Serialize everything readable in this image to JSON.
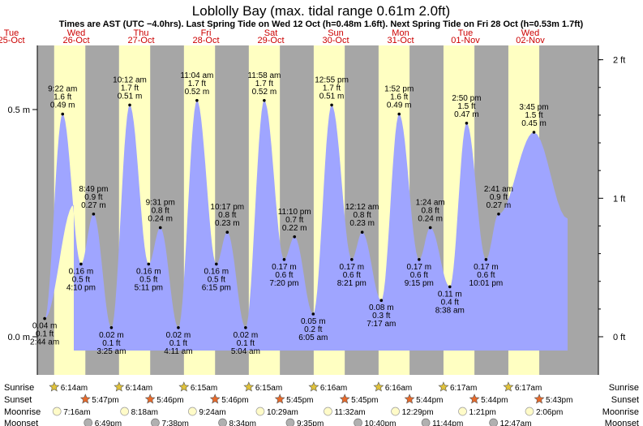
{
  "chart_data": {
    "type": "area",
    "title": "Loblolly Bay (max. tidal range 0.61m 2.0ft)",
    "subtitle": "Times are AST (UTC −4.0hrs). Last Spring Tide on Wed 12 Oct (h=0.48m 1.6ft). Next Spring Tide on Fri 28 Oct (h=0.53m 1.7ft)",
    "y_left_ticks": [
      {
        "v": 0.0,
        "label": "0.0 m"
      },
      {
        "v": 0.5,
        "label": "0.5 m"
      }
    ],
    "y_right_ticks": [
      {
        "v": 0.0,
        "label": "0 ft"
      },
      {
        "v": 0.3048,
        "label": "1 ft"
      },
      {
        "v": 0.6096,
        "label": "2 ft"
      }
    ],
    "ylim": [
      -0.03,
      0.61
    ],
    "days": [
      {
        "weekday": "Tue",
        "date": "25-Oct"
      },
      {
        "weekday": "Wed",
        "date": "26-Oct"
      },
      {
        "weekday": "Thu",
        "date": "27-Oct"
      },
      {
        "weekday": "Fri",
        "date": "28-Oct"
      },
      {
        "weekday": "Sat",
        "date": "29-Oct"
      },
      {
        "weekday": "Sun",
        "date": "30-Oct"
      },
      {
        "weekday": "Mon",
        "date": "31-Oct"
      },
      {
        "weekday": "Tue",
        "date": "01-Nov"
      },
      {
        "weekday": "Wed",
        "date": "02-Nov"
      }
    ],
    "tides": [
      {
        "day": 1,
        "time": "2:44 am",
        "m": 0.04,
        "ft": "0.1 ft",
        "m_label": "0.04 m",
        "type": "low"
      },
      {
        "day": 1,
        "time": "9:22 am",
        "m": 0.49,
        "ft": "1.6 ft",
        "m_label": "0.49 m",
        "type": "high"
      },
      {
        "day": 1,
        "time": "4:10 pm",
        "m": 0.16,
        "ft": "0.5 ft",
        "m_label": "0.16 m",
        "type": "low"
      },
      {
        "day": 1,
        "time": "8:49 pm",
        "m": 0.27,
        "ft": "0.9 ft",
        "m_label": "0.27 m",
        "type": "high"
      },
      {
        "day": 2,
        "time": "3:25 am",
        "m": 0.02,
        "ft": "0.1 ft",
        "m_label": "0.02 m",
        "type": "low"
      },
      {
        "day": 2,
        "time": "10:12 am",
        "m": 0.51,
        "ft": "1.7 ft",
        "m_label": "0.51 m",
        "type": "high"
      },
      {
        "day": 2,
        "time": "5:11 pm",
        "m": 0.16,
        "ft": "0.5 ft",
        "m_label": "0.16 m",
        "type": "low"
      },
      {
        "day": 2,
        "time": "9:31 pm",
        "m": 0.24,
        "ft": "0.8 ft",
        "m_label": "0.24 m",
        "type": "high"
      },
      {
        "day": 3,
        "time": "4:11 am",
        "m": 0.02,
        "ft": "0.1 ft",
        "m_label": "0.02 m",
        "type": "low"
      },
      {
        "day": 3,
        "time": "11:04 am",
        "m": 0.52,
        "ft": "1.7 ft",
        "m_label": "0.52 m",
        "type": "high"
      },
      {
        "day": 3,
        "time": "6:15 pm",
        "m": 0.16,
        "ft": "0.5 ft",
        "m_label": "0.16 m",
        "type": "low"
      },
      {
        "day": 3,
        "time": "10:17 pm",
        "m": 0.23,
        "ft": "0.8 ft",
        "m_label": "0.23 m",
        "type": "high"
      },
      {
        "day": 4,
        "time": "5:04 am",
        "m": 0.02,
        "ft": "0.1 ft",
        "m_label": "0.02 m",
        "type": "low"
      },
      {
        "day": 4,
        "time": "11:58 am",
        "m": 0.52,
        "ft": "1.7 ft",
        "m_label": "0.52 m",
        "type": "high"
      },
      {
        "day": 4,
        "time": "7:20 pm",
        "m": 0.17,
        "ft": "0.6 ft",
        "m_label": "0.17 m",
        "type": "low"
      },
      {
        "day": 4,
        "time": "11:10 pm",
        "m": 0.22,
        "ft": "0.7 ft",
        "m_label": "0.22 m",
        "type": "high"
      },
      {
        "day": 5,
        "time": "6:05 am",
        "m": 0.05,
        "ft": "0.2 ft",
        "m_label": "0.05 m",
        "type": "low"
      },
      {
        "day": 5,
        "time": "12:55 pm",
        "m": 0.51,
        "ft": "1.7 ft",
        "m_label": "0.51 m",
        "type": "high"
      },
      {
        "day": 5,
        "time": "8:21 pm",
        "m": 0.17,
        "ft": "0.6 ft",
        "m_label": "0.17 m",
        "type": "low"
      },
      {
        "day": 6,
        "time": "12:12 am",
        "m": 0.23,
        "ft": "0.8 ft",
        "m_label": "0.23 m",
        "type": "high"
      },
      {
        "day": 6,
        "time": "7:17 am",
        "m": 0.08,
        "ft": "0.3 ft",
        "m_label": "0.08 m",
        "type": "low"
      },
      {
        "day": 6,
        "time": "1:52 pm",
        "m": 0.49,
        "ft": "1.6 ft",
        "m_label": "0.49 m",
        "type": "high"
      },
      {
        "day": 6,
        "time": "9:15 pm",
        "m": 0.17,
        "ft": "0.6 ft",
        "m_label": "0.17 m",
        "type": "low"
      },
      {
        "day": 7,
        "time": "1:24 am",
        "m": 0.24,
        "ft": "0.8 ft",
        "m_label": "0.24 m",
        "type": "high"
      },
      {
        "day": 7,
        "time": "8:38 am",
        "m": 0.11,
        "ft": "0.4 ft",
        "m_label": "0.11 m",
        "type": "low"
      },
      {
        "day": 7,
        "time": "2:50 pm",
        "m": 0.47,
        "ft": "1.5 ft",
        "m_label": "0.47 m",
        "type": "high"
      },
      {
        "day": 7,
        "time": "10:01 pm",
        "m": 0.17,
        "ft": "0.6 ft",
        "m_label": "0.17 m",
        "type": "low"
      },
      {
        "day": 8,
        "time": "2:41 am",
        "m": 0.27,
        "ft": "0.9 ft",
        "m_label": "0.27 m",
        "type": "high"
      },
      {
        "day": 8,
        "time": "3:45 pm",
        "m": 0.45,
        "ft": "1.5 ft",
        "m_label": "0.45 m",
        "type": "high"
      }
    ],
    "rows": [
      {
        "key": "sunrise",
        "label": "Sunrise",
        "values": [
          "6:14am",
          "6:14am",
          "6:15am",
          "6:15am",
          "6:16am",
          "6:16am",
          "6:17am",
          "6:17am"
        ]
      },
      {
        "key": "sunset",
        "label": "Sunset",
        "values": [
          "5:47pm",
          "5:46pm",
          "5:46pm",
          "5:45pm",
          "5:45pm",
          "5:44pm",
          "5:44pm",
          "5:43pm"
        ]
      },
      {
        "key": "moonrise",
        "label": "Moonrise",
        "values": [
          "7:16am",
          "8:18am",
          "9:24am",
          "10:29am",
          "11:32am",
          "12:29pm",
          "1:21pm",
          "2:06pm"
        ]
      },
      {
        "key": "moonset",
        "label": "Moonset",
        "values": [
          "6:49pm",
          "7:38pm",
          "8:34pm",
          "9:35pm",
          "10:40pm",
          "11:44pm",
          "12:47am"
        ]
      }
    ],
    "colors": {
      "night": "#a6a6a6",
      "day": "#ffffc2",
      "water": "#9fa5ff",
      "sunrise_star": "#e0c23a",
      "sunset_star": "#e86a2a",
      "moonrise": "#fffbc8",
      "moonset": "#b0b0b0",
      "weekday": "#cc0000"
    }
  }
}
